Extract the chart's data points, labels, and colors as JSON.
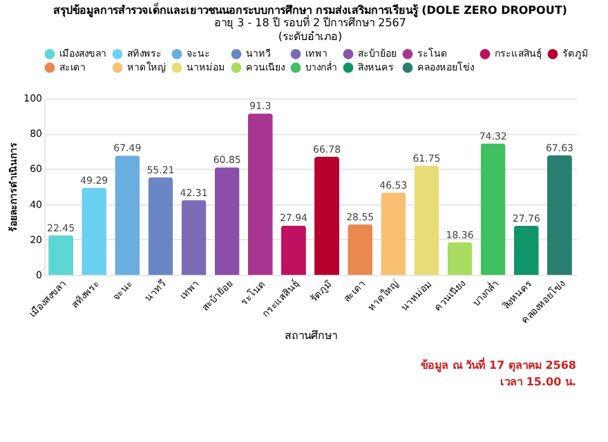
{
  "chart_data": {
    "type": "bar",
    "title": "สรุปข้อมูลการสำรวจเด็กและเยาวชนนอกระบบการศึกษา กรมส่งเสริมการเรียนรู้ (DOLE ZERO DROPOUT)",
    "subtitle": "อายุ 3 - 18 ปี รอบที่ 2 ปีการศึกษา 2567\n(ระดับอำเภอ)",
    "xlabel": "สถานศึกษา",
    "ylabel": "ร้อยละการดำเนินการ",
    "categories": [
      "เมืองสงขลา",
      "สทิงพระ",
      "จะนะ",
      "นาทวี",
      "เทพา",
      "สะบ้าย้อย",
      "ระโนด",
      "กระแสสินธุ์",
      "รัตภูมิ",
      "สะเดา",
      "หาดใหญ่",
      "นาหม่อม",
      "ควนเนียง",
      "บางกล่ำ",
      "สิงหนคร",
      "คลองหอยโข่ง"
    ],
    "series": [
      {
        "name": "เมืองสงขลา",
        "color": "#5dd6d6",
        "values": [
          22.45,
          null,
          null,
          null,
          null,
          null,
          null,
          null,
          null,
          null,
          null,
          null,
          null,
          null,
          null,
          null
        ]
      },
      {
        "name": "สทิงพระ",
        "color": "#6ad2f0",
        "values": [
          null,
          49.29,
          null,
          null,
          null,
          null,
          null,
          null,
          null,
          null,
          null,
          null,
          null,
          null,
          null,
          null
        ]
      },
      {
        "name": "จะนะ",
        "color": "#6aaee0",
        "values": [
          null,
          null,
          67.49,
          null,
          null,
          null,
          null,
          null,
          null,
          null,
          null,
          null,
          null,
          null,
          null,
          null
        ]
      },
      {
        "name": "นาทวี",
        "color": "#6b86c4",
        "values": [
          null,
          null,
          null,
          55.21,
          null,
          null,
          null,
          null,
          null,
          null,
          null,
          null,
          null,
          null,
          null,
          null
        ]
      },
      {
        "name": "เทพา",
        "color": "#7a6ab8",
        "values": [
          null,
          null,
          null,
          null,
          42.31,
          null,
          null,
          null,
          null,
          null,
          null,
          null,
          null,
          null,
          null,
          null
        ]
      },
      {
        "name": "สะบ้าย้อย",
        "color": "#8a4fa8",
        "values": [
          null,
          null,
          null,
          null,
          null,
          60.85,
          null,
          null,
          null,
          null,
          null,
          null,
          null,
          null,
          null,
          null
        ]
      },
      {
        "name": "ระโนด",
        "color": "#a8358f",
        "values": [
          null,
          null,
          null,
          null,
          null,
          null,
          91.3,
          null,
          null,
          null,
          null,
          null,
          null,
          null,
          null,
          null
        ]
      },
      {
        "name": "กระแสสินธุ์",
        "color": "#c01060",
        "values": [
          null,
          null,
          null,
          null,
          null,
          null,
          null,
          27.94,
          null,
          null,
          null,
          null,
          null,
          null,
          null,
          null
        ]
      },
      {
        "name": "รัตภูมิ",
        "color": "#b8002e",
        "values": [
          null,
          null,
          null,
          null,
          null,
          null,
          null,
          null,
          66.78,
          null,
          null,
          null,
          null,
          null,
          null,
          null
        ]
      },
      {
        "name": "สะเดา",
        "color": "#e88a50",
        "values": [
          null,
          null,
          null,
          null,
          null,
          null,
          null,
          null,
          null,
          28.55,
          null,
          null,
          null,
          null,
          null,
          null
        ]
      },
      {
        "name": "หาดใหญ่",
        "color": "#f8c070",
        "values": [
          null,
          null,
          null,
          null,
          null,
          null,
          null,
          null,
          null,
          null,
          46.53,
          null,
          null,
          null,
          null,
          null
        ]
      },
      {
        "name": "นาหม่อม",
        "color": "#e8dc78",
        "values": [
          null,
          null,
          null,
          null,
          null,
          null,
          null,
          null,
          null,
          null,
          null,
          61.75,
          null,
          null,
          null,
          null
        ]
      },
      {
        "name": "ควนเนียง",
        "color": "#a8dc60",
        "values": [
          null,
          null,
          null,
          null,
          null,
          null,
          null,
          null,
          null,
          null,
          null,
          null,
          18.36,
          null,
          null,
          null
        ]
      },
      {
        "name": "บางกล่ำ",
        "color": "#40c060",
        "values": [
          null,
          null,
          null,
          null,
          null,
          null,
          null,
          null,
          null,
          null,
          null,
          null,
          null,
          74.32,
          null,
          null
        ]
      },
      {
        "name": "สิงหนคร",
        "color": "#10956a",
        "values": [
          null,
          null,
          null,
          null,
          null,
          null,
          null,
          null,
          null,
          null,
          null,
          null,
          null,
          null,
          27.76,
          null
        ]
      },
      {
        "name": "คลองหอยโข่ง",
        "color": "#2a8070",
        "values": [
          null,
          null,
          null,
          null,
          null,
          null,
          null,
          null,
          null,
          null,
          null,
          null,
          null,
          null,
          null,
          67.63
        ]
      }
    ],
    "ylim": [
      0,
      100
    ],
    "yticks": [
      0,
      20,
      40,
      60,
      80,
      100
    ],
    "grid": "y",
    "legend": "top",
    "data_labels": true,
    "annotations": [
      "ข้อมูล ณ วันที่ 17 ตุลาคม 2568",
      "เวลา 15.00 น."
    ]
  }
}
